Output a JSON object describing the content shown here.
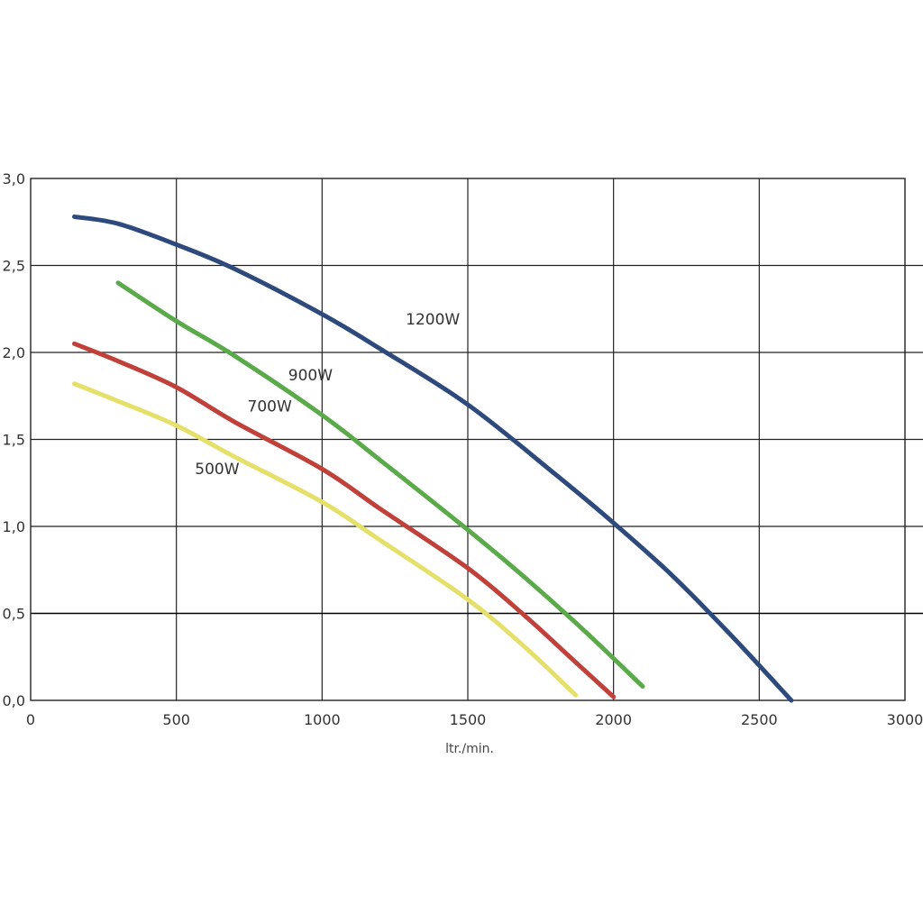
{
  "chart_data": {
    "type": "line",
    "xlabel": "ltr./min.",
    "ylabel": "",
    "xlim": [
      0,
      3000
    ],
    "ylim": [
      0.0,
      3.0
    ],
    "x_ticks": [
      "0",
      "500",
      "1000",
      "1500",
      "2000",
      "2500",
      "3000"
    ],
    "y_ticks": [
      "0,0",
      "0,5",
      "1,0",
      "1,5",
      "2,0",
      "2,5",
      "3,0"
    ],
    "grid": true,
    "series": [
      {
        "name": "1200W",
        "color": "#2e4a7d",
        "points": [
          [
            150,
            2.78
          ],
          [
            300,
            2.74
          ],
          [
            500,
            2.62
          ],
          [
            700,
            2.48
          ],
          [
            1000,
            2.22
          ],
          [
            1200,
            2.02
          ],
          [
            1500,
            1.7
          ],
          [
            1800,
            1.3
          ],
          [
            2000,
            1.02
          ],
          [
            2200,
            0.72
          ],
          [
            2400,
            0.38
          ],
          [
            2610,
            0.0
          ]
        ]
      },
      {
        "name": "900W",
        "color": "#5aaa4a",
        "points": [
          [
            300,
            2.4
          ],
          [
            500,
            2.18
          ],
          [
            700,
            1.98
          ],
          [
            1000,
            1.64
          ],
          [
            1200,
            1.38
          ],
          [
            1500,
            0.98
          ],
          [
            1700,
            0.7
          ],
          [
            1900,
            0.4
          ],
          [
            2100,
            0.08
          ]
        ]
      },
      {
        "name": "700W",
        "color": "#c0403a",
        "points": [
          [
            150,
            2.05
          ],
          [
            300,
            1.95
          ],
          [
            500,
            1.8
          ],
          [
            700,
            1.6
          ],
          [
            1000,
            1.33
          ],
          [
            1200,
            1.1
          ],
          [
            1500,
            0.76
          ],
          [
            1700,
            0.48
          ],
          [
            1850,
            0.25
          ],
          [
            2000,
            0.02
          ]
        ]
      },
      {
        "name": "500W",
        "color": "#e5e06a",
        "points": [
          [
            150,
            1.82
          ],
          [
            300,
            1.72
          ],
          [
            500,
            1.58
          ],
          [
            700,
            1.4
          ],
          [
            1000,
            1.14
          ],
          [
            1200,
            0.92
          ],
          [
            1500,
            0.58
          ],
          [
            1700,
            0.3
          ],
          [
            1870,
            0.03
          ]
        ]
      }
    ],
    "annotations": [
      {
        "text": "1200W",
        "x": 1380,
        "y": 2.16
      },
      {
        "text": "900W",
        "x": 960,
        "y": 1.84
      },
      {
        "text": "700W",
        "x": 820,
        "y": 1.66
      },
      {
        "text": "500W",
        "x": 640,
        "y": 1.3
      }
    ]
  }
}
